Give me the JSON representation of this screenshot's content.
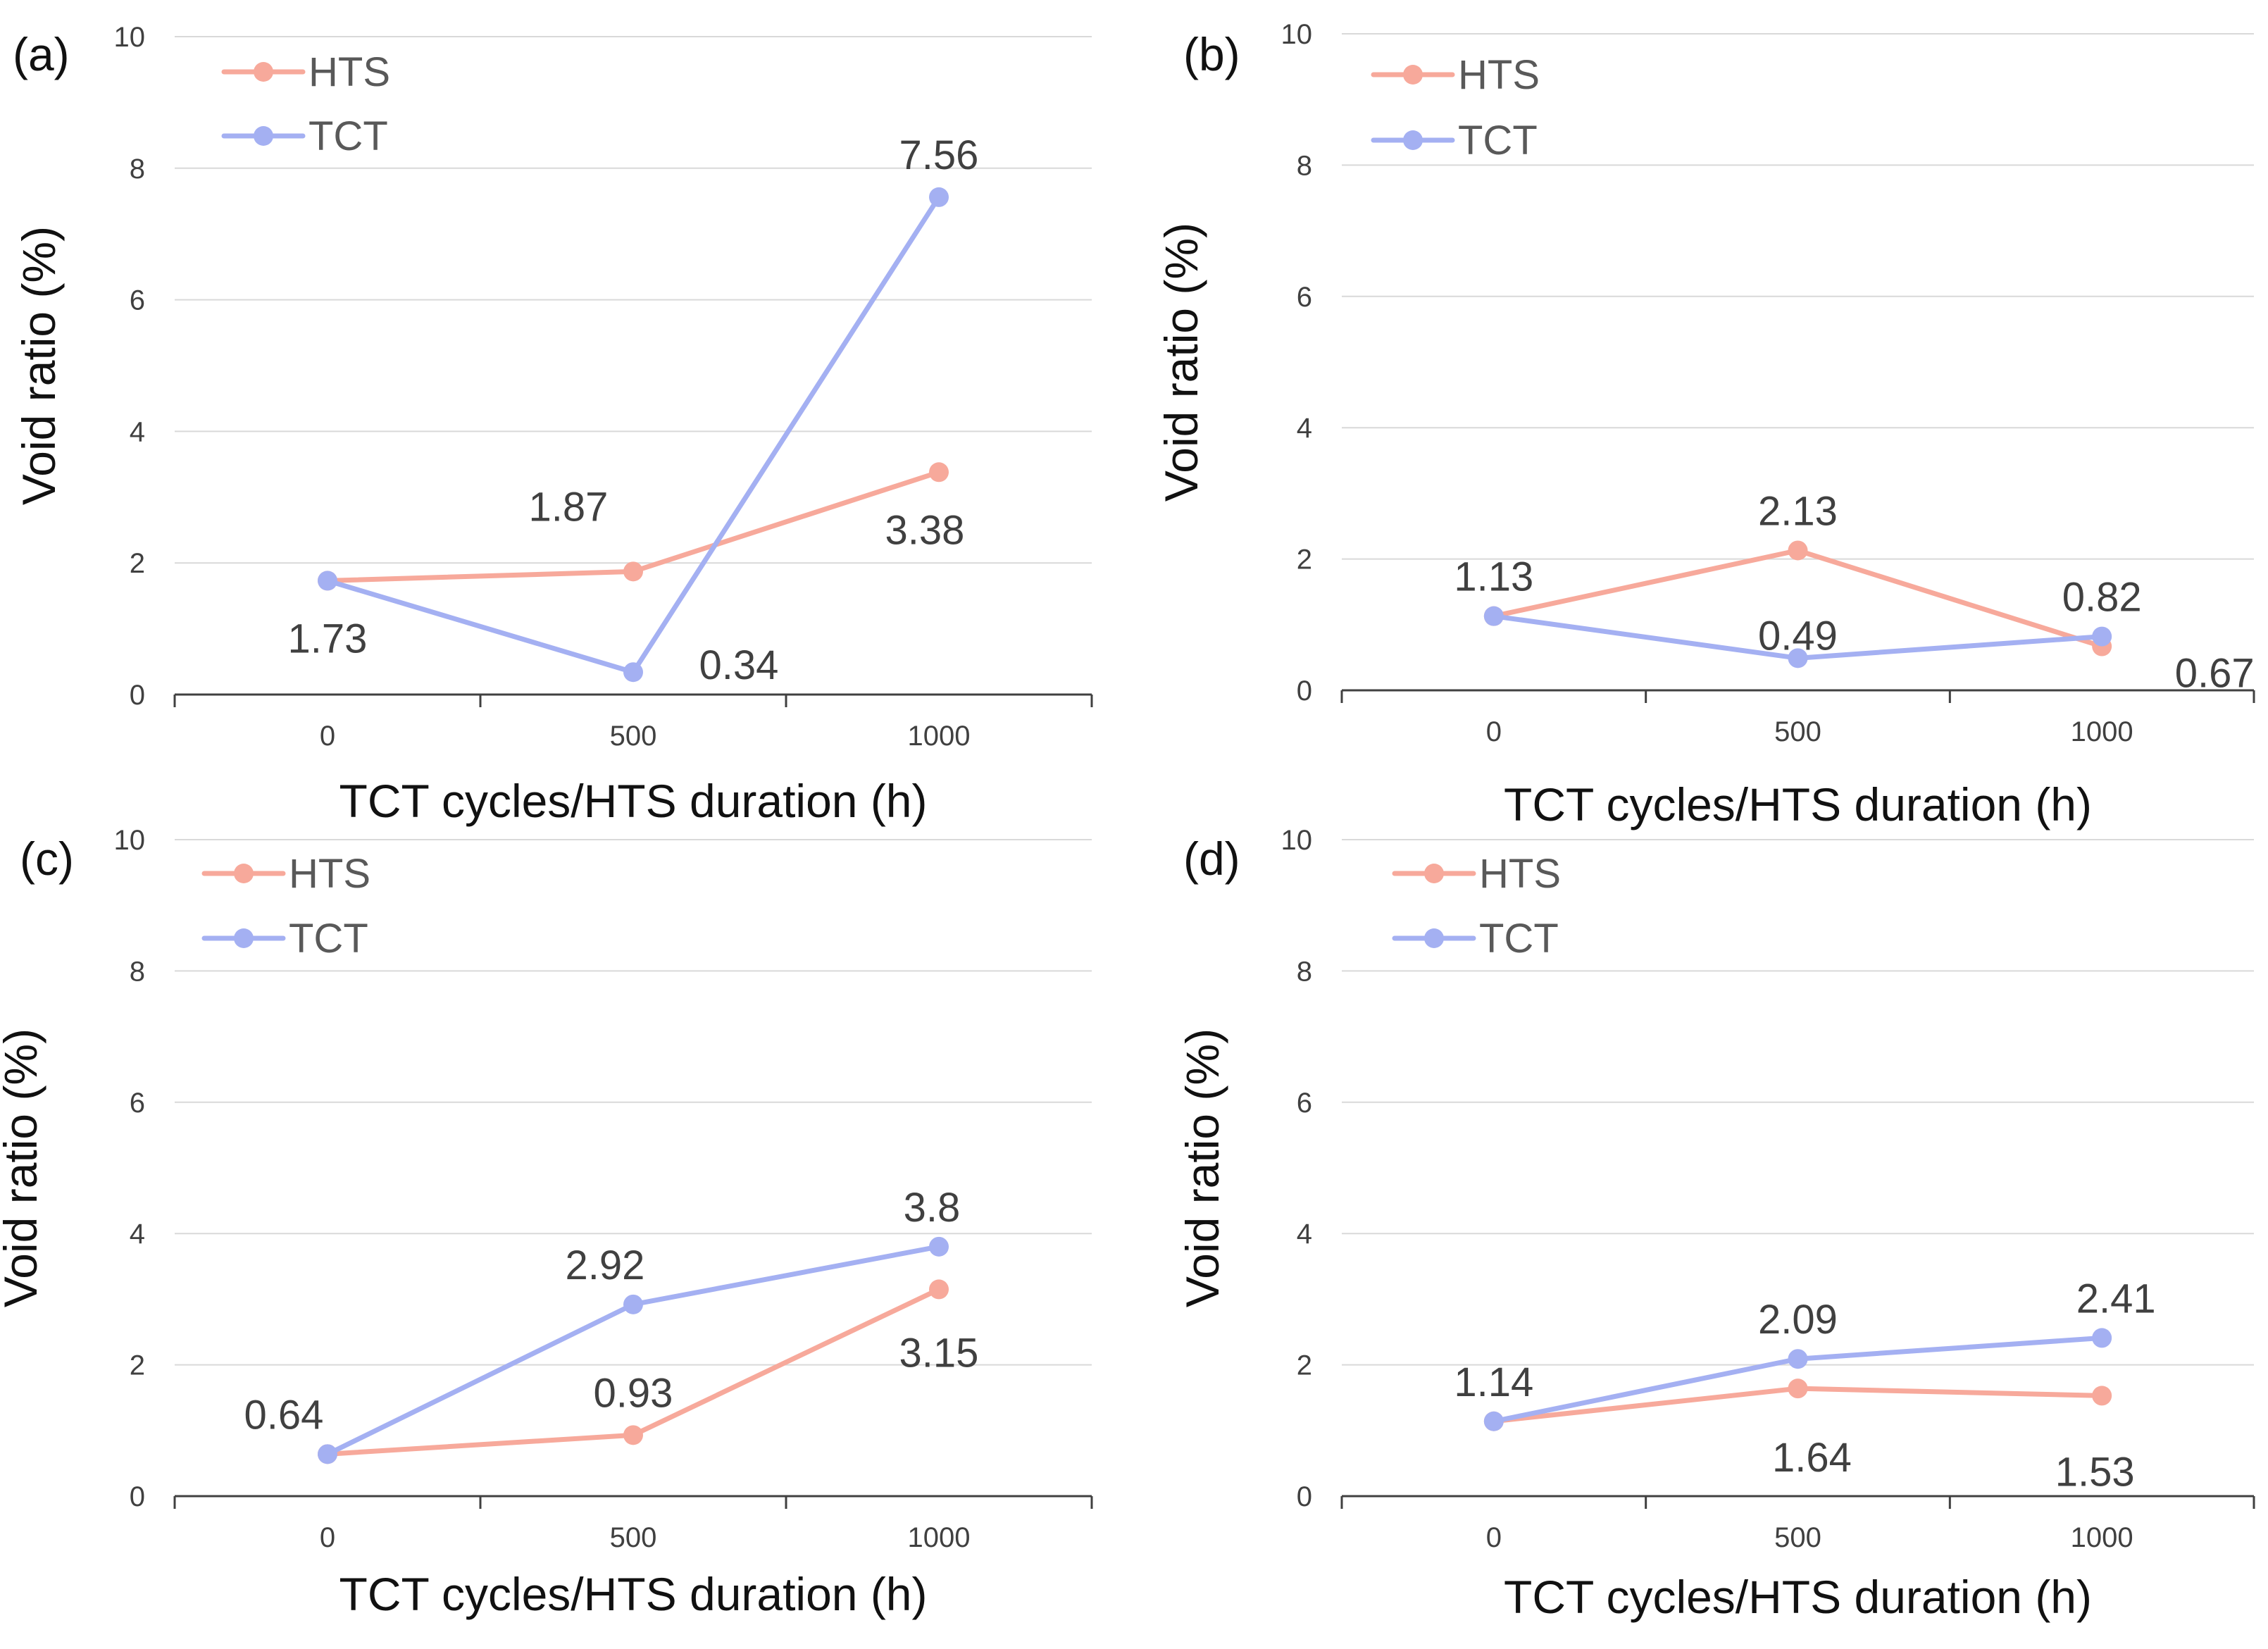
{
  "colors": {
    "HTS": "#f7a99b",
    "TCT": "#a4b0f2",
    "grid": "#d9d9d9",
    "axis": "#404040"
  },
  "chart_data": [
    {
      "type": "line",
      "panel_label": "(a)",
      "categories": [
        "0",
        "500",
        "1000"
      ],
      "xlabel": "TCT cycles/HTS duration (h)",
      "ylabel": "Void ratio (%)",
      "ylim": [
        0,
        10
      ],
      "yticks": [
        "0",
        "2",
        "4",
        "6",
        "8",
        "10"
      ],
      "legend": [
        "HTS",
        "TCT"
      ],
      "series": [
        {
          "name": "HTS",
          "values": [
            1.73,
            1.87,
            3.38
          ],
          "labels": [
            "1.73",
            "1.87",
            "3.38"
          ]
        },
        {
          "name": "TCT",
          "values": [
            1.73,
            0.34,
            7.56
          ],
          "labels": [
            "",
            "0.34",
            "7.56"
          ]
        }
      ]
    },
    {
      "type": "line",
      "panel_label": "(b)",
      "categories": [
        "0",
        "500",
        "1000"
      ],
      "xlabel": "TCT cycles/HTS duration (h)",
      "ylabel": "Void ratio (%)",
      "ylim": [
        0,
        10
      ],
      "yticks": [
        "0",
        "2",
        "4",
        "6",
        "8",
        "10"
      ],
      "legend": [
        "HTS",
        "TCT"
      ],
      "series": [
        {
          "name": "HTS",
          "values": [
            1.13,
            2.13,
            0.67
          ],
          "labels": [
            "1.13",
            "2.13",
            "0.67"
          ]
        },
        {
          "name": "TCT",
          "values": [
            1.13,
            0.49,
            0.82
          ],
          "labels": [
            "",
            "0.49",
            "0.82"
          ]
        }
      ]
    },
    {
      "type": "line",
      "panel_label": "(c)",
      "categories": [
        "0",
        "500",
        "1000"
      ],
      "xlabel": "TCT cycles/HTS duration (h)",
      "ylabel": "Void ratio (%)",
      "ylim": [
        0,
        10
      ],
      "yticks": [
        "0",
        "2",
        "4",
        "6",
        "8",
        "10"
      ],
      "legend": [
        "HTS",
        "TCT"
      ],
      "series": [
        {
          "name": "HTS",
          "values": [
            0.64,
            0.93,
            3.15
          ],
          "labels": [
            "",
            "0.93",
            "3.15"
          ]
        },
        {
          "name": "TCT",
          "values": [
            0.64,
            2.92,
            3.8
          ],
          "labels": [
            "0.64",
            "2.92",
            "3.8"
          ]
        }
      ]
    },
    {
      "type": "line",
      "panel_label": "(d)",
      "categories": [
        "0",
        "500",
        "1000"
      ],
      "xlabel": "TCT cycles/HTS duration (h)",
      "ylabel": "Void ratio (%)",
      "ylim": [
        0,
        10
      ],
      "yticks": [
        "0",
        "2",
        "4",
        "6",
        "8",
        "10"
      ],
      "legend": [
        "HTS",
        "TCT"
      ],
      "series": [
        {
          "name": "HTS",
          "values": [
            1.14,
            1.64,
            1.53
          ],
          "labels": [
            "",
            "1.64",
            "1.53"
          ]
        },
        {
          "name": "TCT",
          "values": [
            1.14,
            2.09,
            2.41
          ],
          "labels": [
            "1.14",
            "2.09",
            "2.41"
          ]
        }
      ]
    }
  ]
}
